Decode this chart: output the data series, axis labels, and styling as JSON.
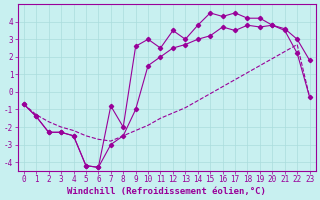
{
  "xlabel": "Windchill (Refroidissement éolien,°C)",
  "bg_color": "#c8f0f0",
  "grid_color": "#aadddd",
  "line_color": "#990099",
  "x": [
    0,
    1,
    2,
    3,
    4,
    5,
    6,
    7,
    8,
    9,
    10,
    11,
    12,
    13,
    14,
    15,
    16,
    17,
    18,
    19,
    20,
    21,
    22,
    23
  ],
  "line1": [
    -0.7,
    -1.4,
    -2.3,
    -2.3,
    -2.5,
    -4.2,
    -4.3,
    -0.8,
    -2.0,
    2.6,
    3.0,
    2.5,
    3.5,
    3.0,
    3.8,
    4.5,
    4.3,
    4.5,
    4.2,
    4.2,
    3.8,
    3.6,
    3.0,
    1.8
  ],
  "line2": [
    -0.7,
    -1.3,
    -1.7,
    -2.0,
    -2.2,
    -2.5,
    -2.7,
    -2.8,
    -2.5,
    -2.2,
    -1.9,
    -1.5,
    -1.2,
    -0.9,
    -0.5,
    -0.1,
    0.3,
    0.7,
    1.1,
    1.5,
    1.9,
    2.3,
    2.7,
    -0.3
  ],
  "line3": [
    -0.7,
    -1.4,
    -2.3,
    -2.3,
    -2.5,
    -4.2,
    -4.3,
    -3.0,
    -2.5,
    -1.0,
    1.5,
    2.0,
    2.5,
    2.7,
    3.0,
    3.2,
    3.7,
    3.5,
    3.8,
    3.7,
    3.8,
    3.5,
    2.2,
    -0.3
  ],
  "ylim": [
    -4.5,
    5.0
  ],
  "xlim": [
    -0.5,
    23.5
  ],
  "yticks": [
    -4,
    -3,
    -2,
    -1,
    0,
    1,
    2,
    3,
    4
  ],
  "xticks": [
    0,
    1,
    2,
    3,
    4,
    5,
    6,
    7,
    8,
    9,
    10,
    11,
    12,
    13,
    14,
    15,
    16,
    17,
    18,
    19,
    20,
    21,
    22,
    23
  ],
  "tick_fontsize": 5.5,
  "xlabel_fontsize": 6.5
}
